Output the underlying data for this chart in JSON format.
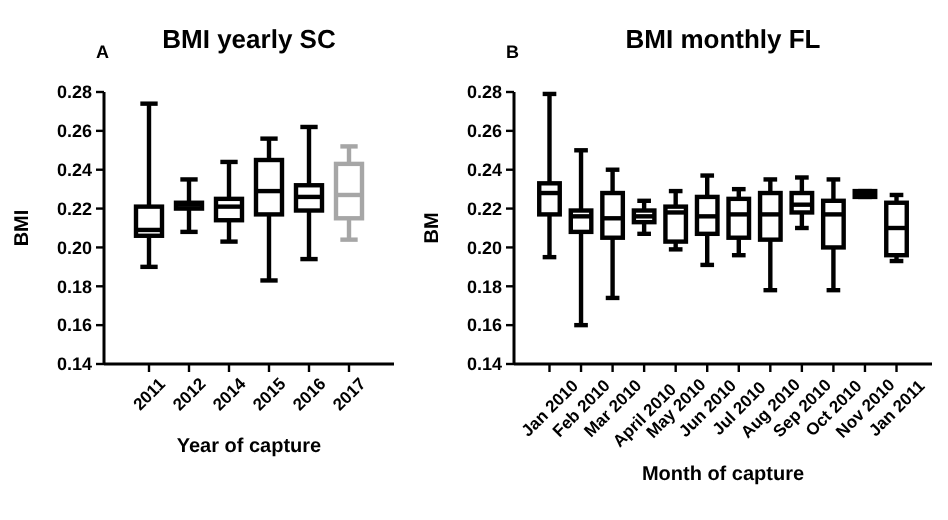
{
  "chart_data": [
    {
      "type": "box",
      "title": "BMI yearly SC",
      "annotations": [
        "A"
      ],
      "xlabel": "Year of capture",
      "ylabel": "BMI",
      "categories": [
        "2011",
        "2012",
        "2014",
        "2015",
        "2016",
        "2017"
      ],
      "colors": [
        "#000000",
        "#000000",
        "#000000",
        "#000000",
        "#000000",
        "#a6a6a6"
      ],
      "ylim": [
        0.14,
        0.28
      ],
      "yticks": [
        {
          "value": 0.14,
          "label": "0.14"
        },
        {
          "value": 0.16,
          "label": "0.16"
        },
        {
          "value": 0.18,
          "label": "0.18"
        },
        {
          "value": 0.2,
          "label": "0.20"
        },
        {
          "value": 0.22,
          "label": "0.22"
        },
        {
          "value": 0.24,
          "label": "0.24"
        },
        {
          "value": 0.26,
          "label": "0.26"
        },
        {
          "value": 0.28,
          "label": "0.28"
        }
      ],
      "grid": false,
      "boxes": [
        {
          "low": 0.19,
          "q1": 0.206,
          "median": 0.209,
          "q3": 0.221,
          "high": 0.274
        },
        {
          "low": 0.208,
          "q1": 0.22,
          "median": 0.222,
          "q3": 0.223,
          "high": 0.235
        },
        {
          "low": 0.203,
          "q1": 0.214,
          "median": 0.221,
          "q3": 0.225,
          "high": 0.244
        },
        {
          "low": 0.183,
          "q1": 0.217,
          "median": 0.229,
          "q3": 0.245,
          "high": 0.256
        },
        {
          "low": 0.194,
          "q1": 0.219,
          "median": 0.226,
          "q3": 0.232,
          "high": 0.262
        },
        {
          "low": 0.204,
          "q1": 0.215,
          "median": 0.227,
          "q3": 0.243,
          "high": 0.252
        }
      ]
    },
    {
      "type": "box",
      "title": "BMI monthly FL",
      "annotations": [
        "B"
      ],
      "xlabel": "Month of capture",
      "ylabel": "BM",
      "categories": [
        "Jan 2010",
        "Feb 2010",
        "Mar 2010",
        "April 2010",
        "May 2010",
        "Jun 2010",
        "Jul 2010",
        "Aug 2010",
        "Sep 2010",
        "Oct 2010",
        "Nov 2010",
        "Jan 2011"
      ],
      "colors": [
        "#000000",
        "#000000",
        "#000000",
        "#000000",
        "#000000",
        "#000000",
        "#000000",
        "#000000",
        "#000000",
        "#000000",
        "#000000",
        "#000000"
      ],
      "ylim": [
        0.14,
        0.28
      ],
      "yticks": [
        {
          "value": 0.14,
          "label": "0.14"
        },
        {
          "value": 0.16,
          "label": "0.16"
        },
        {
          "value": 0.18,
          "label": "0.18"
        },
        {
          "value": 0.2,
          "label": "0.20"
        },
        {
          "value": 0.22,
          "label": "0.22"
        },
        {
          "value": 0.24,
          "label": "0.24"
        },
        {
          "value": 0.26,
          "label": "0.26"
        },
        {
          "value": 0.28,
          "label": "0.28"
        }
      ],
      "grid": false,
      "boxes": [
        {
          "low": 0.195,
          "q1": 0.217,
          "median": 0.228,
          "q3": 0.233,
          "high": 0.279
        },
        {
          "low": 0.16,
          "q1": 0.208,
          "median": 0.216,
          "q3": 0.219,
          "high": 0.25
        },
        {
          "low": 0.174,
          "q1": 0.205,
          "median": 0.215,
          "q3": 0.228,
          "high": 0.24
        },
        {
          "low": 0.207,
          "q1": 0.213,
          "median": 0.216,
          "q3": 0.219,
          "high": 0.224
        },
        {
          "low": 0.199,
          "q1": 0.203,
          "median": 0.218,
          "q3": 0.221,
          "high": 0.229
        },
        {
          "low": 0.191,
          "q1": 0.207,
          "median": 0.216,
          "q3": 0.226,
          "high": 0.237
        },
        {
          "low": 0.196,
          "q1": 0.205,
          "median": 0.217,
          "q3": 0.225,
          "high": 0.23
        },
        {
          "low": 0.178,
          "q1": 0.204,
          "median": 0.217,
          "q3": 0.228,
          "high": 0.235
        },
        {
          "low": 0.21,
          "q1": 0.218,
          "median": 0.222,
          "q3": 0.228,
          "high": 0.236
        },
        {
          "low": 0.178,
          "q1": 0.2,
          "median": 0.217,
          "q3": 0.224,
          "high": 0.235
        },
        {
          "low": 0.226,
          "q1": 0.226,
          "median": 0.228,
          "q3": 0.229,
          "high": 0.229
        },
        {
          "low": 0.193,
          "q1": 0.196,
          "median": 0.21,
          "q3": 0.223,
          "high": 0.227
        }
      ]
    }
  ]
}
